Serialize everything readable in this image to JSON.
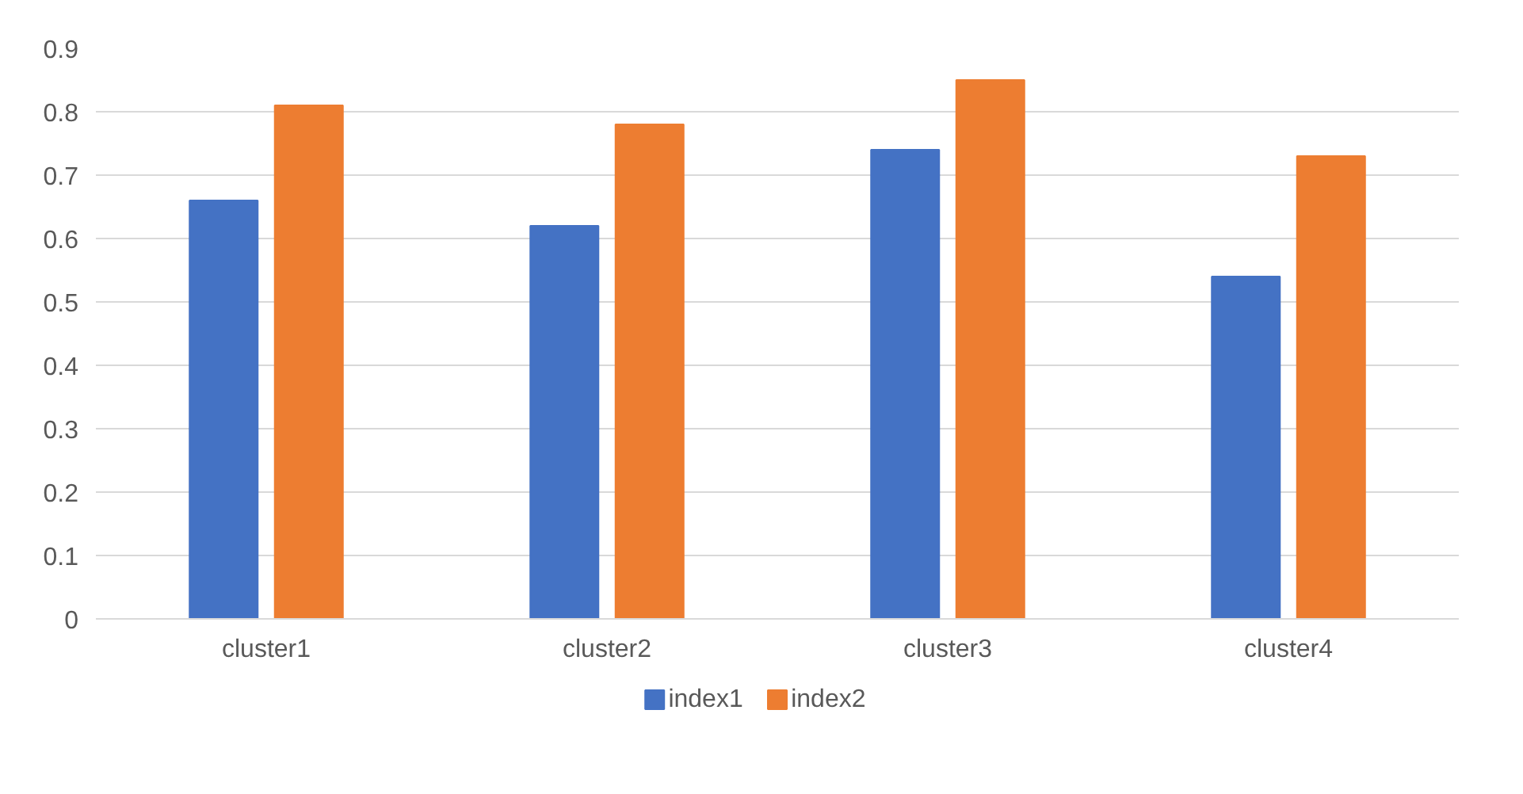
{
  "chart_data": {
    "type": "bar",
    "categories": [
      "cluster1",
      "cluster2",
      "cluster3",
      "cluster4"
    ],
    "series": [
      {
        "name": "index1",
        "color": "#4472c4",
        "values": [
          0.66,
          0.62,
          0.74,
          0.54
        ]
      },
      {
        "name": "index2",
        "color": "#ed7d31",
        "values": [
          0.81,
          0.78,
          0.85,
          0.73
        ]
      }
    ],
    "ylim": [
      0,
      0.9
    ],
    "yticks": [
      {
        "value": 0,
        "label": "0"
      },
      {
        "value": 0.1,
        "label": "0.1"
      },
      {
        "value": 0.2,
        "label": "0.2"
      },
      {
        "value": 0.3,
        "label": "0.3"
      },
      {
        "value": 0.4,
        "label": "0.4"
      },
      {
        "value": 0.5,
        "label": "0.5"
      },
      {
        "value": 0.6,
        "label": "0.6"
      },
      {
        "value": 0.7,
        "label": "0.7"
      },
      {
        "value": 0.8,
        "label": "0.8"
      },
      {
        "value": 0.9,
        "label": "0.9"
      }
    ],
    "grid": "y",
    "legend": "bottom"
  }
}
